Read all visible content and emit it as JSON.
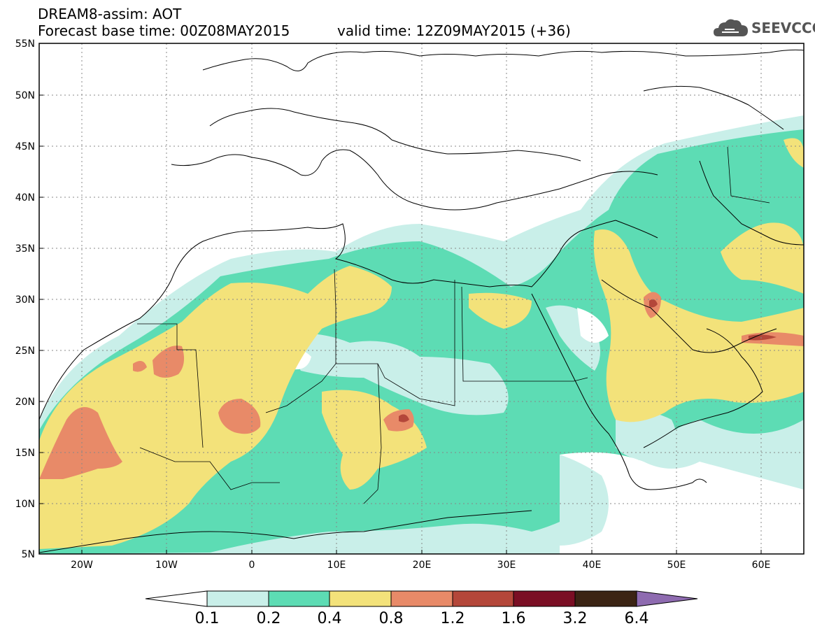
{
  "header": {
    "line1": "DREAM8-assim: AOT",
    "line2": "Forecast base time: 00Z08MAY2015",
    "valid": "valid time: 12Z09MAY2015 (+36)",
    "logo_text": "SEEVCCC"
  },
  "map": {
    "lat_labels": [
      "55N",
      "50N",
      "45N",
      "40N",
      "35N",
      "30N",
      "25N",
      "20N",
      "15N",
      "10N",
      "5N"
    ],
    "lon_labels": [
      "20W",
      "10W",
      "0",
      "10E",
      "20E",
      "30E",
      "40E",
      "50E",
      "60E"
    ]
  },
  "colorbar": {
    "labels": [
      "0.1",
      "0.2",
      "0.4",
      "0.8",
      "1.2",
      "1.6",
      "3.2",
      "6.4"
    ],
    "colors": [
      "#ffffff",
      "#c9efe9",
      "#5ddcb4",
      "#f3e27a",
      "#e88a68",
      "#b4473a",
      "#7a0e24",
      "#3b2414",
      "#8e6bb0"
    ]
  },
  "colors": {
    "c01": "#c9efe9",
    "c02": "#5ddcb4",
    "c04": "#f3e27a",
    "c08": "#e88a68",
    "c12": "#b4473a"
  }
}
